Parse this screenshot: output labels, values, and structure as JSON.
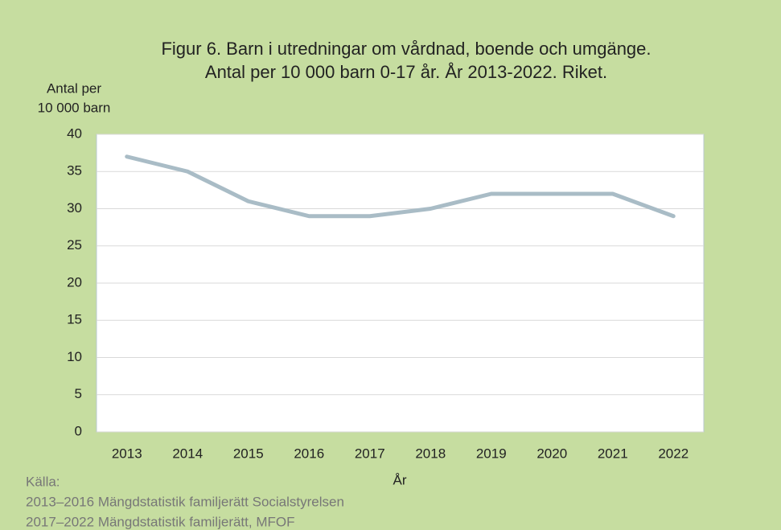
{
  "chart_data": {
    "type": "line",
    "title": [
      "Figur 6. Barn i utredningar om vårdnad, boende och umgänge.",
      "Antal per 10 000 barn 0-17 år. År 2013-2022. Riket."
    ],
    "y_label": [
      "Antal per",
      "10 000 barn"
    ],
    "x_label": "År",
    "categories": [
      "2013",
      "2014",
      "2015",
      "2016",
      "2017",
      "2018",
      "2019",
      "2020",
      "2021",
      "2022"
    ],
    "values": [
      37,
      35,
      31,
      29,
      29,
      30,
      32,
      32,
      32,
      29
    ],
    "color": "#a9bcc6",
    "ylim": [
      0,
      40
    ],
    "yticks": [
      0,
      5,
      10,
      15,
      20,
      25,
      30,
      35,
      40
    ],
    "grid": true,
    "source": [
      "Källa:",
      "2013–2016 Mängdstatistik familjerätt Socialstyrelsen",
      "2017–2022 Mängdstatistik familjerätt, MFOF"
    ]
  }
}
